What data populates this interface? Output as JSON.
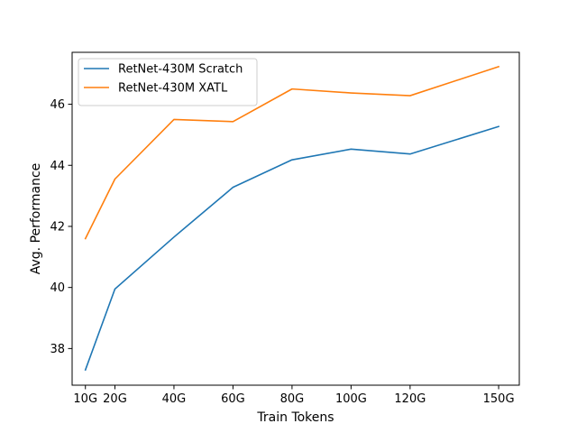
{
  "chart_data": {
    "type": "line",
    "title": "",
    "xlabel": "Train Tokens",
    "ylabel": "Avg. Performance",
    "x": [
      10,
      20,
      40,
      60,
      80,
      100,
      120,
      150
    ],
    "x_tick_labels": [
      "10G",
      "20G",
      "40G",
      "60G",
      "80G",
      "100G",
      "120G",
      "150G"
    ],
    "xlim": [
      5.5,
      157
    ],
    "ylim": [
      36.8,
      47.7
    ],
    "y_ticks": [
      38,
      40,
      42,
      44,
      46
    ],
    "y_tick_labels": [
      "38",
      "40",
      "42",
      "44",
      "46"
    ],
    "grid": false,
    "legend_position": "top-left",
    "series": [
      {
        "name": "RetNet-430M Scratch",
        "color": "#1f77b4",
        "values": [
          37.3,
          39.95,
          41.65,
          43.28,
          44.18,
          44.53,
          44.37,
          45.27
        ]
      },
      {
        "name": "RetNet-430M XATL",
        "color": "#ff7f0e",
        "values": [
          41.6,
          43.55,
          45.5,
          45.43,
          46.5,
          46.37,
          46.28,
          47.23
        ]
      }
    ]
  }
}
